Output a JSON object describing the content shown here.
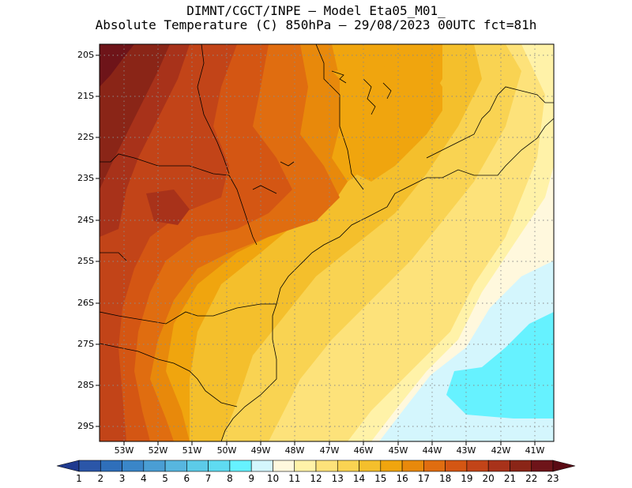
{
  "title": {
    "line1": "DIMNT/CGCT/INPE –  Model Eta05_M01_",
    "line2": "Absolute Temperature (C) 850hPa –  29/08/2023 00UTC fct=81h"
  },
  "map": {
    "lon_range": [
      -53.8,
      -40.6
    ],
    "lat_range": [
      -29.4,
      -20.1
    ],
    "y_ticks": [
      "20S",
      "21S",
      "22S",
      "23S",
      "24S",
      "25S",
      "26S",
      "27S",
      "28S",
      "29S"
    ],
    "x_ticks": [
      "53W",
      "52W",
      "51W",
      "50W",
      "49W",
      "48W",
      "47W",
      "46W",
      "45W",
      "44W",
      "43W",
      "42W",
      "41W"
    ]
  },
  "colorbar": {
    "labels": [
      "1",
      "2",
      "3",
      "4",
      "5",
      "6",
      "7",
      "8",
      "9",
      "10",
      "11",
      "12",
      "13",
      "14",
      "15",
      "16",
      "17",
      "18",
      "19",
      "20",
      "21",
      "22",
      "23"
    ],
    "colors": [
      "#1f3a8f",
      "#2b56a8",
      "#2f6fba",
      "#3a86c8",
      "#4a9ed4",
      "#57b6df",
      "#5ccbe8",
      "#5fdbf1",
      "#66f2ff",
      "#d4f6fd",
      "#fff8dd",
      "#fff2a8",
      "#fde27a",
      "#f9d352",
      "#f4bf2c",
      "#f0a50e",
      "#e8890b",
      "#e06d10",
      "#d45613",
      "#c24418",
      "#a8321a",
      "#8a2517",
      "#6e1419",
      "#5a0b14"
    ]
  }
}
